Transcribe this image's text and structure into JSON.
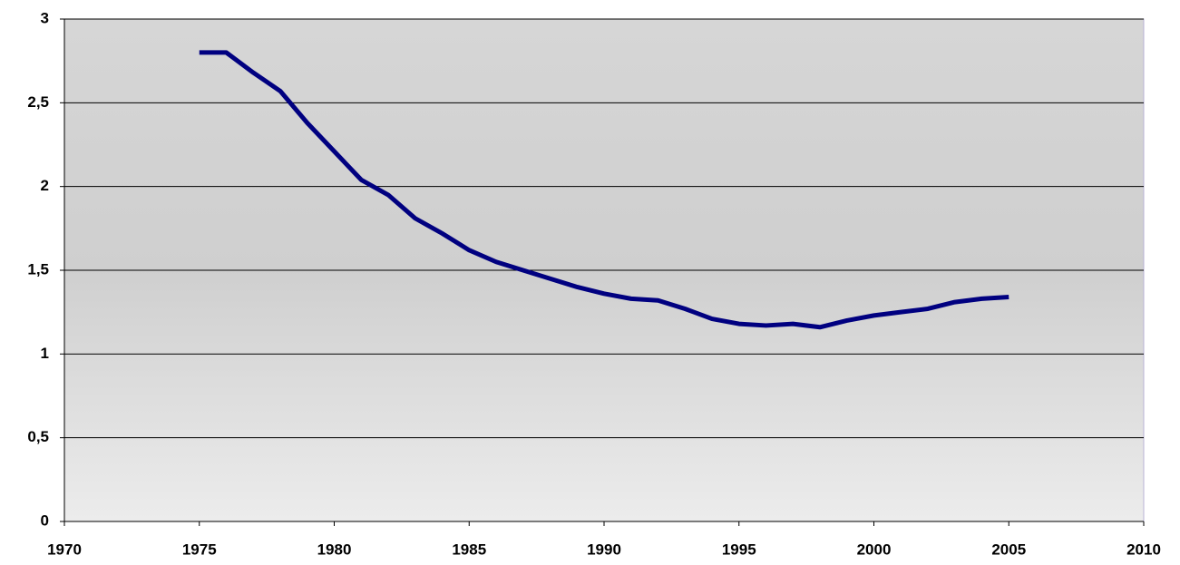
{
  "chart_data": {
    "type": "line",
    "x": [
      1975,
      1976,
      1977,
      1978,
      1979,
      1980,
      1981,
      1982,
      1983,
      1984,
      1985,
      1986,
      1987,
      1988,
      1989,
      1990,
      1991,
      1992,
      1993,
      1994,
      1995,
      1996,
      1997,
      1998,
      1999,
      2000,
      2001,
      2002,
      2003,
      2004,
      2005
    ],
    "values": [
      2.8,
      2.8,
      2.68,
      2.57,
      2.38,
      2.21,
      2.04,
      1.95,
      1.81,
      1.72,
      1.62,
      1.55,
      1.5,
      1.45,
      1.4,
      1.36,
      1.33,
      1.32,
      1.27,
      1.21,
      1.18,
      1.17,
      1.18,
      1.16,
      1.2,
      1.23,
      1.25,
      1.27,
      1.31,
      1.33,
      1.34
    ],
    "color": "#000080",
    "xlim": [
      1970,
      2010
    ],
    "xticks": [
      1970,
      1975,
      1980,
      1985,
      1990,
      1995,
      2000,
      2005,
      2010
    ],
    "ylim": [
      0,
      3
    ],
    "yticks": [
      0,
      {
        "value": 0.5,
        "label": "0,5"
      },
      1,
      {
        "value": 1.5,
        "label": "1,5"
      },
      2,
      {
        "value": 2.5,
        "label": "2,5"
      },
      3
    ],
    "grid": true
  }
}
